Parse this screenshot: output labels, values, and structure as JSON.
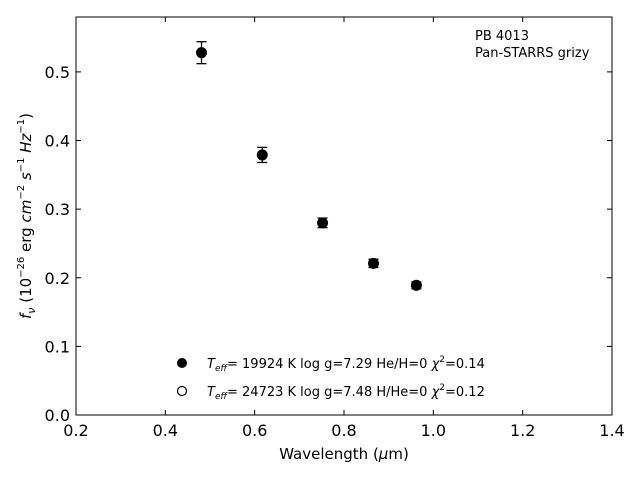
{
  "chart_data": {
    "type": "scatter",
    "annotation": [
      "PB 4013",
      "Pan-STARRS grizy"
    ],
    "xlabel": "Wavelength (μm)",
    "ylabel": "f_ν (10^-26 erg cm^-2 s^-1 Hz^-1)",
    "xlim": [
      0.2,
      1.4
    ],
    "ylim": [
      0.0,
      0.58
    ],
    "xticks": [
      0.2,
      0.4,
      0.6,
      0.8,
      1.0,
      1.2,
      1.4
    ],
    "xtick_labels": [
      "0.2",
      "0.4",
      "0.6",
      "0.8",
      "1.0",
      "1.2",
      "1.4"
    ],
    "yticks": [
      0.0,
      0.1,
      0.2,
      0.3,
      0.4,
      0.5
    ],
    "ytick_labels": [
      "0.0",
      "0.1",
      "0.2",
      "0.3",
      "0.4",
      "0.5"
    ],
    "grid": false,
    "series": [
      {
        "marker": "filled-circle",
        "x": [
          0.481,
          0.617,
          0.752,
          0.866,
          0.962
        ],
        "y": [
          0.528,
          0.379,
          0.28,
          0.221,
          0.189
        ],
        "yerr": [
          0.016,
          0.011,
          0.007,
          0.006,
          0.005
        ]
      }
    ],
    "legend": {
      "placement": "lower-center",
      "entries": [
        {
          "marker": "filled-circle",
          "text": "= 19924 K  log g=7.29  He/H=0  ",
          "chi2": "=0.14"
        },
        {
          "marker": "open-circle",
          "text": "= 24723 K  log g=7.48  H/He=0  ",
          "chi2": "=0.12"
        }
      ]
    }
  }
}
